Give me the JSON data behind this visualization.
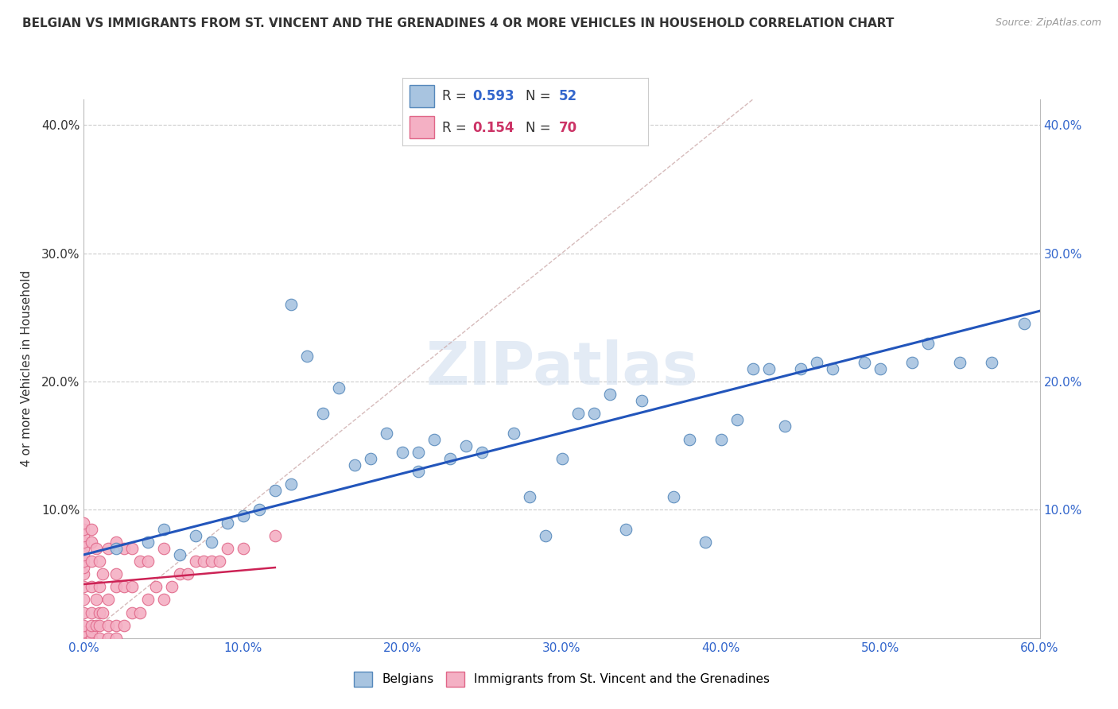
{
  "title": "BELGIAN VS IMMIGRANTS FROM ST. VINCENT AND THE GRENADINES 4 OR MORE VEHICLES IN HOUSEHOLD CORRELATION CHART",
  "source": "Source: ZipAtlas.com",
  "ylabel": "4 or more Vehicles in Household",
  "xlim": [
    0.0,
    0.6
  ],
  "ylim": [
    0.0,
    0.42
  ],
  "xticklabels": [
    "0.0%",
    "10.0%",
    "20.0%",
    "30.0%",
    "40.0%",
    "50.0%",
    "60.0%"
  ],
  "ytick_vals": [
    0.0,
    0.1,
    0.2,
    0.3,
    0.4
  ],
  "yticklabels_left": [
    "",
    "10.0%",
    "20.0%",
    "30.0%",
    "40.0%"
  ],
  "yticklabels_right": [
    "",
    "10.0%",
    "20.0%",
    "30.0%",
    "40.0%"
  ],
  "grid_color": "#cccccc",
  "belgian_color": "#a8c4e0",
  "belgian_edge_color": "#5588bb",
  "svgr_color": "#f4b0c4",
  "svgr_edge_color": "#e06688",
  "belgian_R": 0.593,
  "belgian_N": 52,
  "svgr_R": 0.154,
  "svgr_N": 70,
  "belgian_line_color": "#2255bb",
  "svgr_line_color": "#cc2255",
  "watermark": "ZIPatlas",
  "legend_labels": [
    "Belgians",
    "Immigrants from St. Vincent and the Grenadines"
  ],
  "background_color": "#ffffff",
  "belgian_scatter_x": [
    0.02,
    0.04,
    0.05,
    0.06,
    0.07,
    0.08,
    0.09,
    0.1,
    0.11,
    0.12,
    0.13,
    0.13,
    0.14,
    0.15,
    0.16,
    0.17,
    0.18,
    0.19,
    0.2,
    0.21,
    0.21,
    0.22,
    0.23,
    0.24,
    0.25,
    0.27,
    0.28,
    0.29,
    0.3,
    0.31,
    0.32,
    0.33,
    0.34,
    0.35,
    0.37,
    0.38,
    0.39,
    0.4,
    0.41,
    0.42,
    0.43,
    0.44,
    0.45,
    0.46,
    0.47,
    0.49,
    0.5,
    0.52,
    0.53,
    0.55,
    0.57,
    0.59
  ],
  "belgian_scatter_y": [
    0.07,
    0.075,
    0.085,
    0.065,
    0.08,
    0.075,
    0.09,
    0.095,
    0.1,
    0.115,
    0.26,
    0.12,
    0.22,
    0.175,
    0.195,
    0.135,
    0.14,
    0.16,
    0.145,
    0.145,
    0.13,
    0.155,
    0.14,
    0.15,
    0.145,
    0.16,
    0.11,
    0.08,
    0.14,
    0.175,
    0.175,
    0.19,
    0.085,
    0.185,
    0.11,
    0.155,
    0.075,
    0.155,
    0.17,
    0.21,
    0.21,
    0.165,
    0.21,
    0.215,
    0.21,
    0.215,
    0.21,
    0.215,
    0.23,
    0.215,
    0.215,
    0.245
  ],
  "svgr_scatter_x": [
    0.0,
    0.0,
    0.0,
    0.0,
    0.0,
    0.0,
    0.0,
    0.0,
    0.0,
    0.0,
    0.0,
    0.0,
    0.0,
    0.0,
    0.0,
    0.0,
    0.0,
    0.0,
    0.0,
    0.0,
    0.005,
    0.005,
    0.005,
    0.005,
    0.005,
    0.005,
    0.005,
    0.005,
    0.008,
    0.008,
    0.008,
    0.01,
    0.01,
    0.01,
    0.01,
    0.01,
    0.012,
    0.012,
    0.015,
    0.015,
    0.015,
    0.015,
    0.02,
    0.02,
    0.02,
    0.02,
    0.02,
    0.025,
    0.025,
    0.025,
    0.03,
    0.03,
    0.03,
    0.035,
    0.035,
    0.04,
    0.04,
    0.045,
    0.05,
    0.05,
    0.055,
    0.06,
    0.065,
    0.07,
    0.075,
    0.08,
    0.085,
    0.09,
    0.1,
    0.12
  ],
  "svgr_scatter_y": [
    0.0,
    0.0,
    0.0,
    0.0,
    0.0,
    0.005,
    0.005,
    0.01,
    0.02,
    0.03,
    0.04,
    0.05,
    0.055,
    0.06,
    0.065,
    0.07,
    0.075,
    0.08,
    0.085,
    0.09,
    0.0,
    0.005,
    0.01,
    0.02,
    0.04,
    0.06,
    0.075,
    0.085,
    0.01,
    0.03,
    0.07,
    0.0,
    0.01,
    0.02,
    0.04,
    0.06,
    0.02,
    0.05,
    0.0,
    0.01,
    0.03,
    0.07,
    0.0,
    0.01,
    0.04,
    0.05,
    0.075,
    0.01,
    0.04,
    0.07,
    0.02,
    0.04,
    0.07,
    0.02,
    0.06,
    0.03,
    0.06,
    0.04,
    0.03,
    0.07,
    0.04,
    0.05,
    0.05,
    0.06,
    0.06,
    0.06,
    0.06,
    0.07,
    0.07,
    0.08
  ],
  "belgian_line_x": [
    0.0,
    0.6
  ],
  "belgian_line_y": [
    0.065,
    0.255
  ],
  "svgr_line_x": [
    0.0,
    0.12
  ],
  "svgr_line_y": [
    0.042,
    0.055
  ],
  "diag_line_x": [
    0.0,
    0.42
  ],
  "diag_line_y": [
    0.0,
    0.42
  ]
}
